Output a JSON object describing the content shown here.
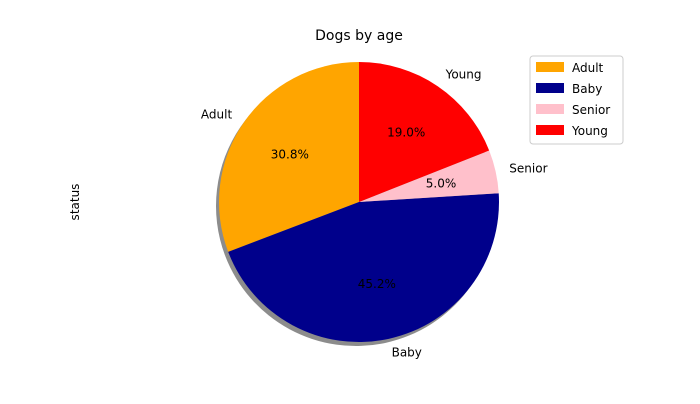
{
  "chart_data": {
    "type": "pie",
    "title": "Dogs by age",
    "ylabel": "status",
    "legend_position": "top-right",
    "shadow": true,
    "start_angle_degrees": 90,
    "direction": "counterclockwise",
    "slices": [
      {
        "label": "Adult",
        "value": 30.8,
        "pct_label": "30.8%",
        "color": "#ffa500"
      },
      {
        "label": "Baby",
        "value": 45.2,
        "pct_label": "45.2%",
        "color": "#00008b"
      },
      {
        "label": "Senior",
        "value": 5.0,
        "pct_label": "5.0%",
        "color": "#ffc0cb"
      },
      {
        "label": "Young",
        "value": 19.0,
        "pct_label": "19.0%",
        "color": "#ff0000"
      }
    ]
  }
}
